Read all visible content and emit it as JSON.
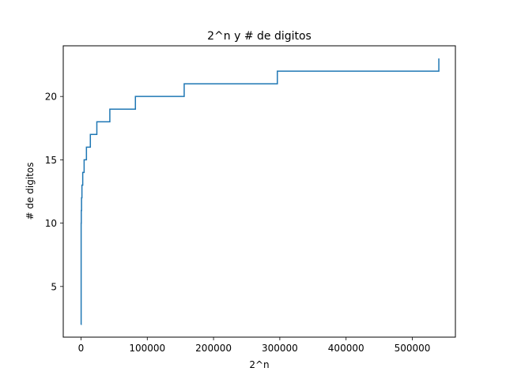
{
  "chart_data": {
    "type": "line",
    "title": "2^n y # de digitos",
    "xlabel": "2^n",
    "ylabel": "# de digitos",
    "xlim": [
      -26800,
      565000
    ],
    "ylim": [
      1.0,
      24.0
    ],
    "x_ticks": [
      0,
      100000,
      200000,
      300000,
      400000,
      500000
    ],
    "y_ticks": [
      5,
      10,
      15,
      20
    ],
    "grid": false,
    "legend": "none",
    "colors": {
      "line": "#1f77b4",
      "axes": "#000000",
      "background": "#ffffff"
    },
    "series": [
      {
        "step": "post",
        "x": [
          0,
          200,
          400,
          800,
          1400,
          2600,
          4700,
          8200,
          14100,
          23900,
          43500,
          82100,
          155700,
          296300,
          540000
        ],
        "y": [
          2,
          10,
          11,
          12,
          13,
          14,
          15,
          16,
          17,
          18,
          19,
          20,
          21,
          22,
          23
        ]
      }
    ]
  }
}
